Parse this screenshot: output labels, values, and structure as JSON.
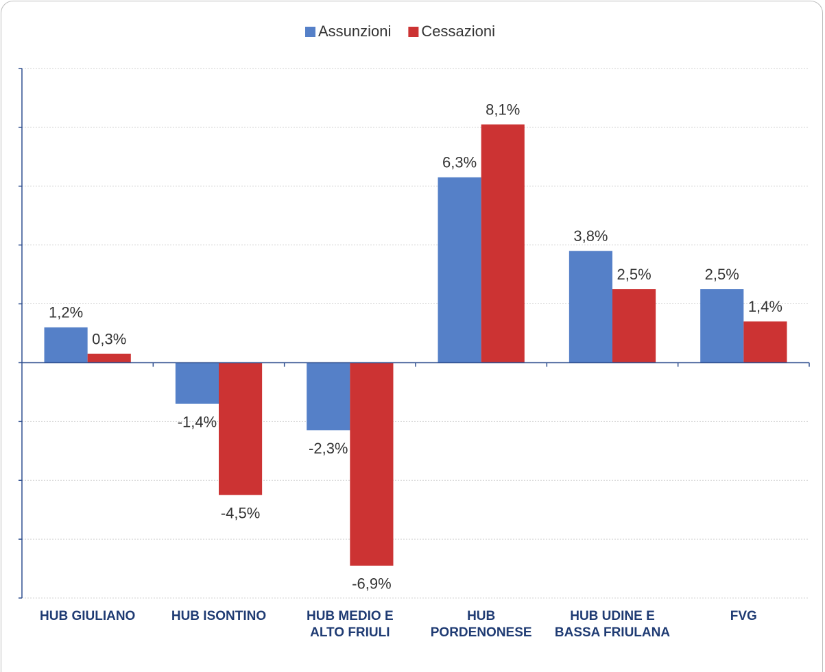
{
  "chart_data": {
    "type": "bar",
    "categories": [
      "HUB GIULIANO",
      "HUB ISONTINO",
      "HUB MEDIO E ALTO FRIULI",
      "HUB PORDENONESE",
      "HUB UDINE E BASSA FRIULANA",
      "FVG"
    ],
    "series": [
      {
        "name": "Assunzioni",
        "color": "#5580c8",
        "values": [
          1.2,
          -1.4,
          -2.3,
          6.3,
          3.8,
          2.5
        ],
        "value_labels": [
          "1,2%",
          "-1,4%",
          "-2,3%",
          "6,3%",
          "3,8%",
          "2,5%"
        ]
      },
      {
        "name": "Cessazioni",
        "color": "#cc3333",
        "values": [
          0.3,
          -4.5,
          -6.9,
          8.1,
          2.5,
          1.4
        ],
        "value_labels": [
          "0,3%",
          "-4,5%",
          "-6,9%",
          "8,1%",
          "2,5%",
          "1,4%"
        ]
      }
    ],
    "ylim": [
      -8,
      10
    ],
    "yticks": [
      -8,
      -6,
      -4,
      -2,
      0,
      2,
      4,
      6,
      8,
      10
    ],
    "grid": true,
    "legend": "top"
  }
}
